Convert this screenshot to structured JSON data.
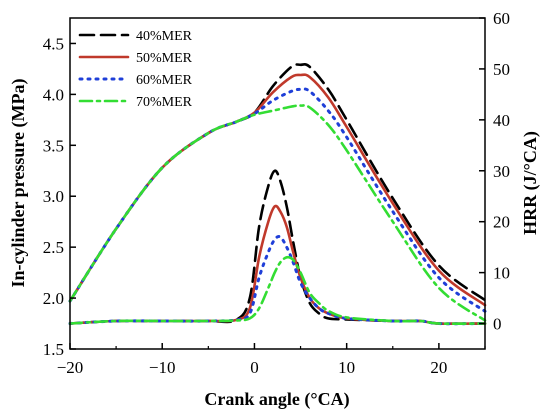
{
  "chart_data": {
    "type": "line",
    "xlabel": "Crank angle (°CA)",
    "ylabel_left": "In-cylinder pressure (MPa)",
    "ylabel_right": "HRR (J/°CA)",
    "xlim": [
      -20,
      25
    ],
    "ylim_left": [
      1.5,
      4.75
    ],
    "ylim_right": [
      -5,
      60
    ],
    "xticks": [
      -20,
      -10,
      0,
      10,
      20
    ],
    "xtick_labels": [
      "−20",
      "−10",
      "0",
      "10",
      "20"
    ],
    "yticks_left": [
      1.5,
      2.0,
      2.5,
      3.0,
      3.5,
      4.0,
      4.5
    ],
    "ytick_labels_left": [
      "1.5",
      "2.0",
      "2.5",
      "3.0",
      "3.5",
      "4.0",
      "4.5"
    ],
    "yticks_right": [
      0,
      10,
      20,
      30,
      40,
      50,
      60
    ],
    "ytick_labels_right": [
      "0",
      "10",
      "20",
      "30",
      "40",
      "50",
      "60"
    ],
    "grid": false,
    "legend_position": "top-left",
    "series": [
      {
        "name": "40%MER",
        "color": "#000000",
        "style": "dashed",
        "pressure": {
          "x": [
            -20,
            -15,
            -10,
            -5,
            -2,
            0,
            2,
            4,
            5,
            6,
            8,
            10,
            15,
            20,
            25
          ],
          "y": [
            1.97,
            2.68,
            3.28,
            3.62,
            3.73,
            3.82,
            4.08,
            4.27,
            4.29,
            4.27,
            4.05,
            3.75,
            2.98,
            2.32,
            1.98
          ]
        },
        "hrr": {
          "x": [
            -20,
            -15,
            -10,
            -5,
            -2,
            -0.5,
            0.5,
            1.5,
            2.2,
            2.8,
            3.5,
            4.2,
            5,
            6,
            7,
            8,
            10,
            15,
            18,
            20,
            25
          ],
          "y": [
            0,
            0.5,
            0.5,
            0.5,
            0.7,
            5,
            19,
            27,
            30,
            28,
            23,
            16,
            9,
            4,
            2,
            1,
            0.8,
            0.5,
            0.5,
            0,
            0
          ]
        }
      },
      {
        "name": "50%MER",
        "color": "#c0392b",
        "style": "solid",
        "pressure": {
          "x": [
            -20,
            -15,
            -10,
            -5,
            -2,
            0,
            2,
            4,
            5,
            6,
            8,
            10,
            15,
            20,
            25
          ],
          "y": [
            1.97,
            2.68,
            3.28,
            3.62,
            3.73,
            3.82,
            4.02,
            4.17,
            4.19,
            4.17,
            3.97,
            3.68,
            2.93,
            2.27,
            1.93
          ]
        },
        "hrr": {
          "x": [
            -20,
            -15,
            -10,
            -5,
            -2,
            -0.5,
            0.5,
            1.5,
            2.2,
            2.8,
            3.5,
            4.2,
            5,
            6,
            7,
            8,
            10,
            15,
            18,
            20,
            25
          ],
          "y": [
            0,
            0.5,
            0.5,
            0.5,
            0.7,
            3,
            13,
            20,
            23,
            22,
            19,
            14,
            9,
            5,
            3,
            2,
            1,
            0.5,
            0.5,
            0,
            0
          ]
        }
      },
      {
        "name": "60%MER",
        "color": "#1f3fd8",
        "style": "dotted",
        "pressure": {
          "x": [
            -20,
            -15,
            -10,
            -5,
            -2,
            0,
            2,
            4,
            5,
            6,
            8,
            10,
            15,
            20,
            25
          ],
          "y": [
            1.97,
            2.68,
            3.28,
            3.62,
            3.73,
            3.81,
            3.94,
            4.03,
            4.05,
            4.03,
            3.84,
            3.58,
            2.85,
            2.2,
            1.87
          ]
        },
        "hrr": {
          "x": [
            -20,
            -15,
            -10,
            -5,
            -2,
            -0.5,
            0.5,
            1.5,
            2.2,
            2.8,
            3.5,
            4.2,
            5,
            6,
            7,
            8,
            10,
            15,
            18,
            20,
            25
          ],
          "y": [
            0,
            0.5,
            0.5,
            0.5,
            0.7,
            2,
            9,
            14,
            16.5,
            17,
            15,
            12,
            8,
            5,
            3,
            2,
            1,
            0.5,
            0.5,
            0,
            0
          ]
        }
      },
      {
        "name": "70%MER",
        "color": "#33dd33",
        "style": "dashdot",
        "pressure": {
          "x": [
            -20,
            -15,
            -10,
            -5,
            -2,
            0,
            2,
            4,
            5,
            6,
            8,
            10,
            15,
            20,
            25
          ],
          "y": [
            1.97,
            2.68,
            3.28,
            3.62,
            3.73,
            3.8,
            3.84,
            3.88,
            3.89,
            3.87,
            3.7,
            3.45,
            2.75,
            2.1,
            1.78
          ]
        },
        "hrr": {
          "x": [
            -20,
            -15,
            -10,
            -5,
            -2,
            -0.5,
            0.5,
            1.5,
            2.2,
            2.8,
            3.5,
            4.2,
            5,
            6,
            7,
            8,
            10,
            15,
            18,
            20,
            25
          ],
          "y": [
            0,
            0.5,
            0.5,
            0.5,
            0.6,
            1,
            3,
            7,
            10,
            12,
            13,
            12.5,
            10,
            6,
            4,
            2.5,
            1.2,
            0.5,
            0.5,
            0,
            0
          ]
        }
      }
    ]
  }
}
